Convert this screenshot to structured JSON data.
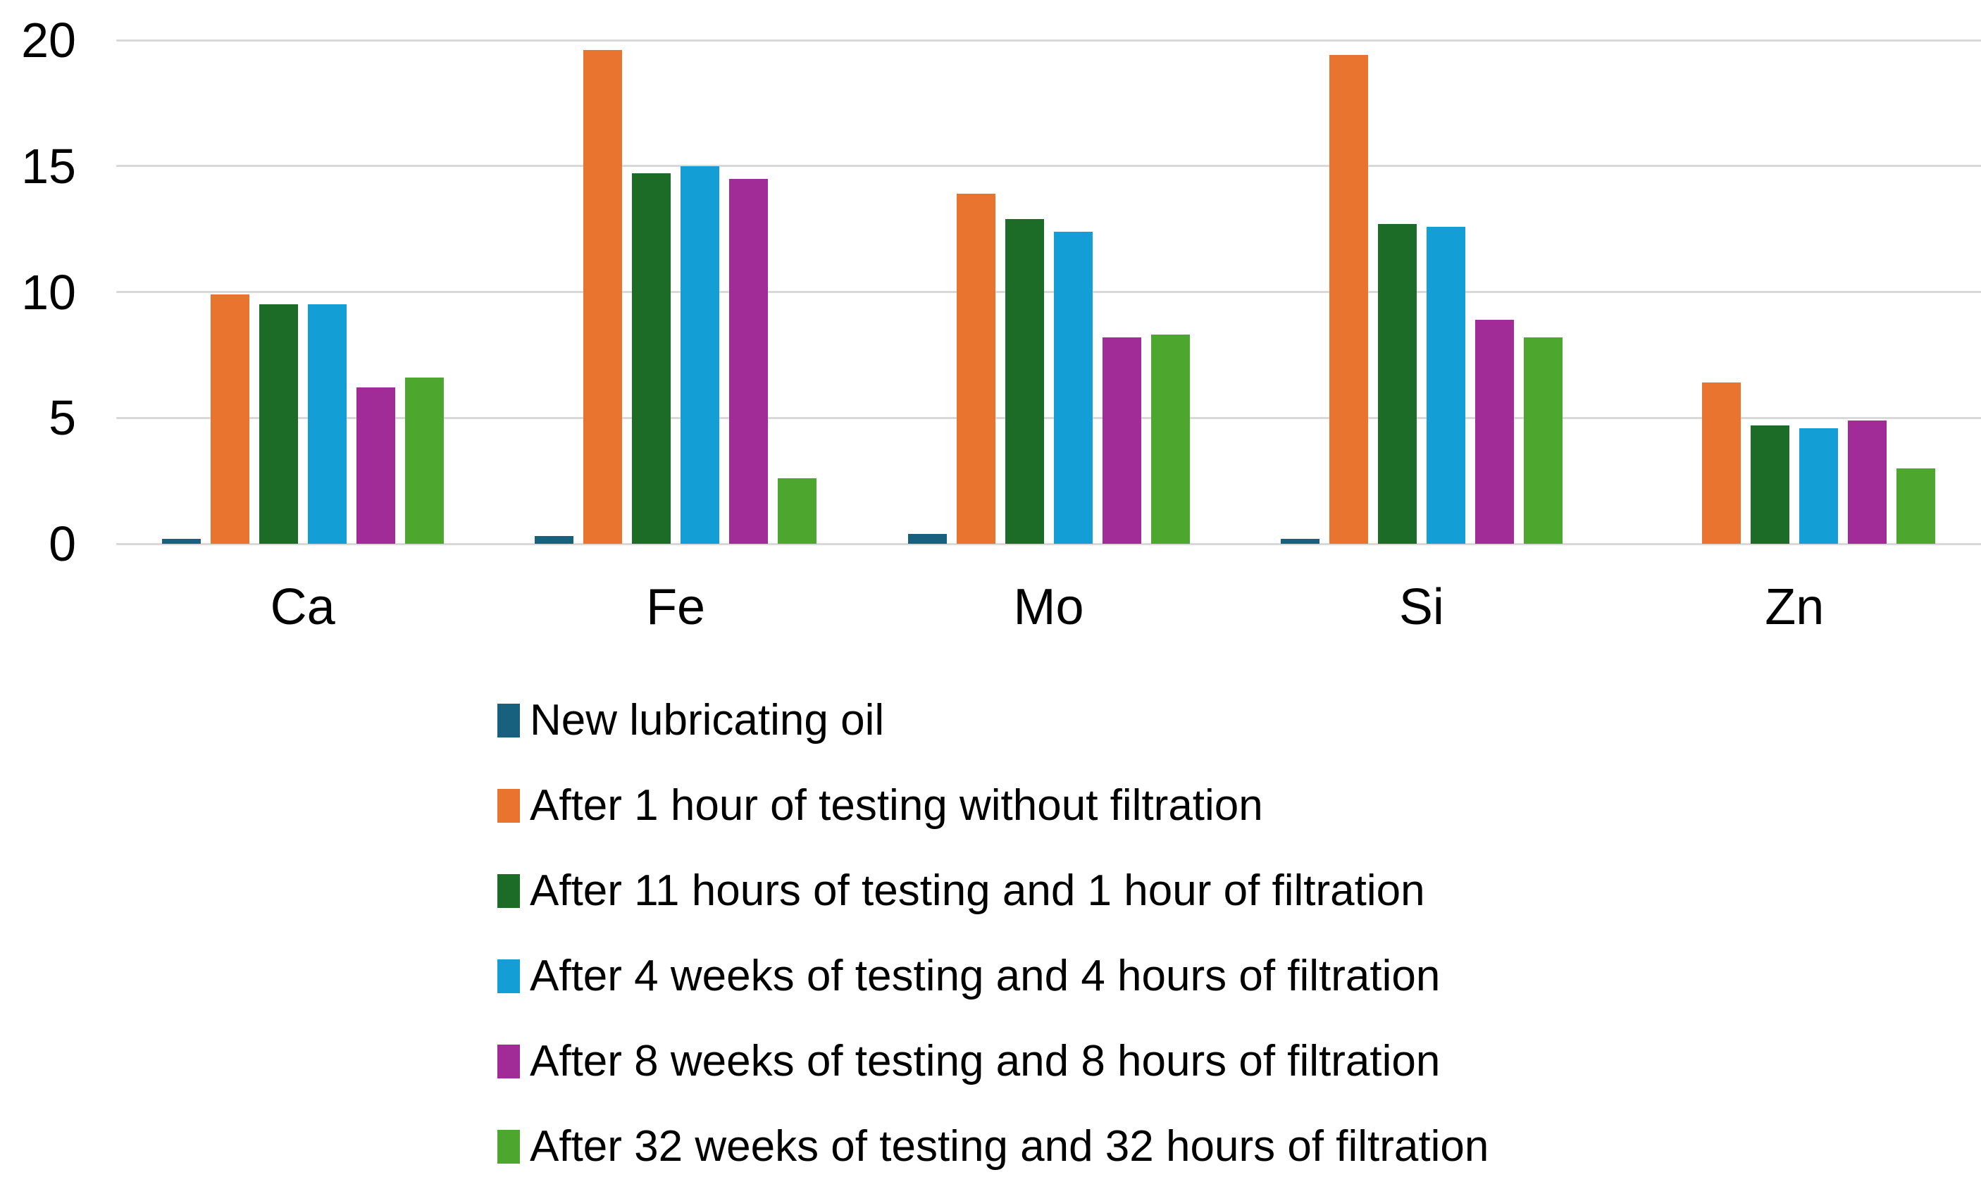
{
  "chart_data": {
    "type": "bar",
    "title": "",
    "categories": [
      "Ca",
      "Fe",
      "Mo",
      "Si",
      "Zn"
    ],
    "series": [
      {
        "name": "New lubricating oil",
        "color": "#17617F",
        "values": [
          0.2,
          0.3,
          0.4,
          0.2,
          0
        ]
      },
      {
        "name": "After 1 hour of testing without filtration",
        "color": "#E8742F",
        "values": [
          9.9,
          19.6,
          13.9,
          19.4,
          6.4
        ]
      },
      {
        "name": "After 11 hours of testing and 1 hour of filtration",
        "color": "#1C6B27",
        "values": [
          9.5,
          14.7,
          12.9,
          12.7,
          4.7
        ]
      },
      {
        "name": "After 4 weeks of testing and 4 hours of filtration",
        "color": "#139FD6",
        "values": [
          9.5,
          15.0,
          12.4,
          12.6,
          4.6
        ]
      },
      {
        "name": "After 8 weeks of testing and 8 hours of filtration",
        "color": "#A12B97",
        "values": [
          6.2,
          14.5,
          8.2,
          8.9,
          4.9
        ]
      },
      {
        "name": "After 32 weeks of testing and 32 hours of filtration",
        "color": "#4DA72F",
        "values": [
          6.6,
          2.6,
          8.3,
          8.2,
          3.0
        ]
      }
    ],
    "yticks": [
      0,
      5,
      10,
      15,
      20
    ],
    "ylim": [
      0,
      20
    ],
    "xlabel": "",
    "ylabel": "",
    "grid": true,
    "gridline_color": "#D9D9D9",
    "background_color": "#FFFFFF",
    "legend_position": "bottom-left"
  }
}
